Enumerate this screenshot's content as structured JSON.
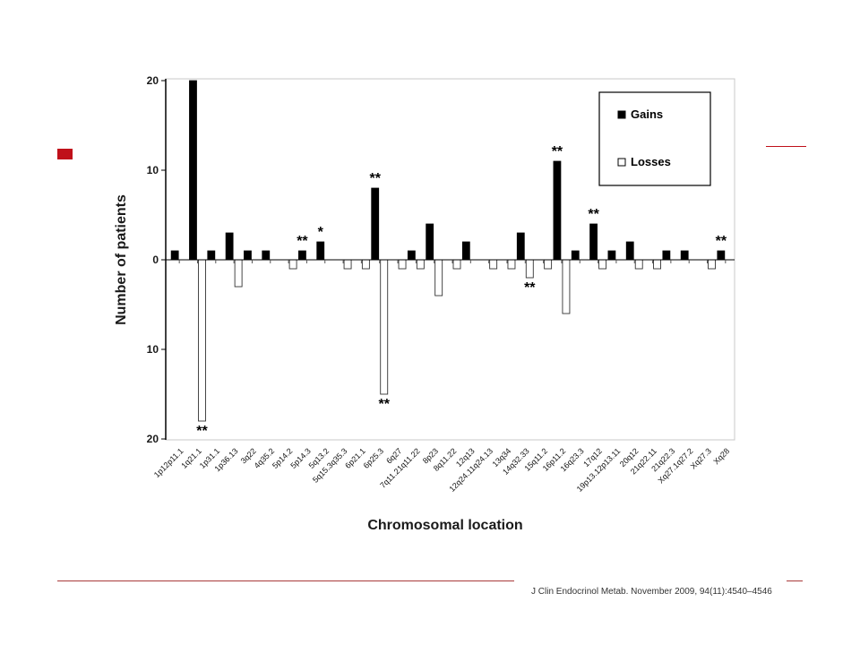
{
  "chart_data": {
    "type": "bar",
    "xlabel": "Chromosomal location",
    "ylabel": "Number of patients",
    "ylim": [
      -20,
      20
    ],
    "yticks": [
      {
        "value": 20,
        "label": "20"
      },
      {
        "value": 10,
        "label": "10"
      },
      {
        "value": 0,
        "label": "0"
      },
      {
        "value": -10,
        "label": "10"
      },
      {
        "value": -20,
        "label": "20"
      }
    ],
    "legend": {
      "position": "top-right"
    },
    "categories": [
      "1p12p11.1",
      "1q21.1",
      "1p31.1",
      "1p36.13",
      "3q22",
      "4q35.2",
      "5p14.2",
      "5p14.3",
      "5q13.2",
      "5q15.3q35.3",
      "6p21.1",
      "6p25.3",
      "6q27",
      "7q11.21q11.22",
      "8p23",
      "8q11.22",
      "12q13",
      "12q24.11q24.13",
      "13q34",
      "14q32.33",
      "15q11.2",
      "16p11.2",
      "16q23.3",
      "17q12",
      "19p13.12p13.11",
      "20q12",
      "21q22.11",
      "21q22.3",
      "Xq27.1q27.2",
      "Xq27.3",
      "Xq28"
    ],
    "series": [
      {
        "name": "Gains",
        "color": "#000000",
        "values": [
          1,
          20,
          1,
          3,
          1,
          1,
          0,
          1,
          2,
          0,
          0,
          8,
          0,
          1,
          4,
          0,
          2,
          0,
          0,
          3,
          0,
          11,
          1,
          4,
          1,
          2,
          0,
          1,
          1,
          0,
          1
        ]
      },
      {
        "name": "Losses",
        "color": "#ffffff",
        "values": [
          0,
          18,
          0,
          3,
          0,
          0,
          1,
          0,
          0,
          1,
          1,
          15,
          1,
          1,
          4,
          1,
          0,
          1,
          1,
          2,
          1,
          6,
          0,
          1,
          0,
          1,
          1,
          0,
          0,
          1,
          0
        ]
      }
    ],
    "annotations": [
      {
        "category": "1q21.1",
        "series": "Losses",
        "text": "**"
      },
      {
        "category": "5p14.3",
        "series": "Gains",
        "text": "**"
      },
      {
        "category": "5q13.2",
        "series": "Gains",
        "text": "*"
      },
      {
        "category": "6p25.3",
        "series": "Gains",
        "text": "**"
      },
      {
        "category": "6p25.3",
        "series": "Losses",
        "text": "**"
      },
      {
        "category": "14q32.33",
        "series": "Losses",
        "text": "**"
      },
      {
        "category": "16p11.2",
        "series": "Gains",
        "text": "**"
      },
      {
        "category": "17q12",
        "series": "Gains",
        "text": "**"
      },
      {
        "category": "Xq28",
        "series": "Gains",
        "text": "**"
      }
    ]
  },
  "citation": "J Clin Endocrinol Metab. November 2009, 94(11):4540–4546"
}
